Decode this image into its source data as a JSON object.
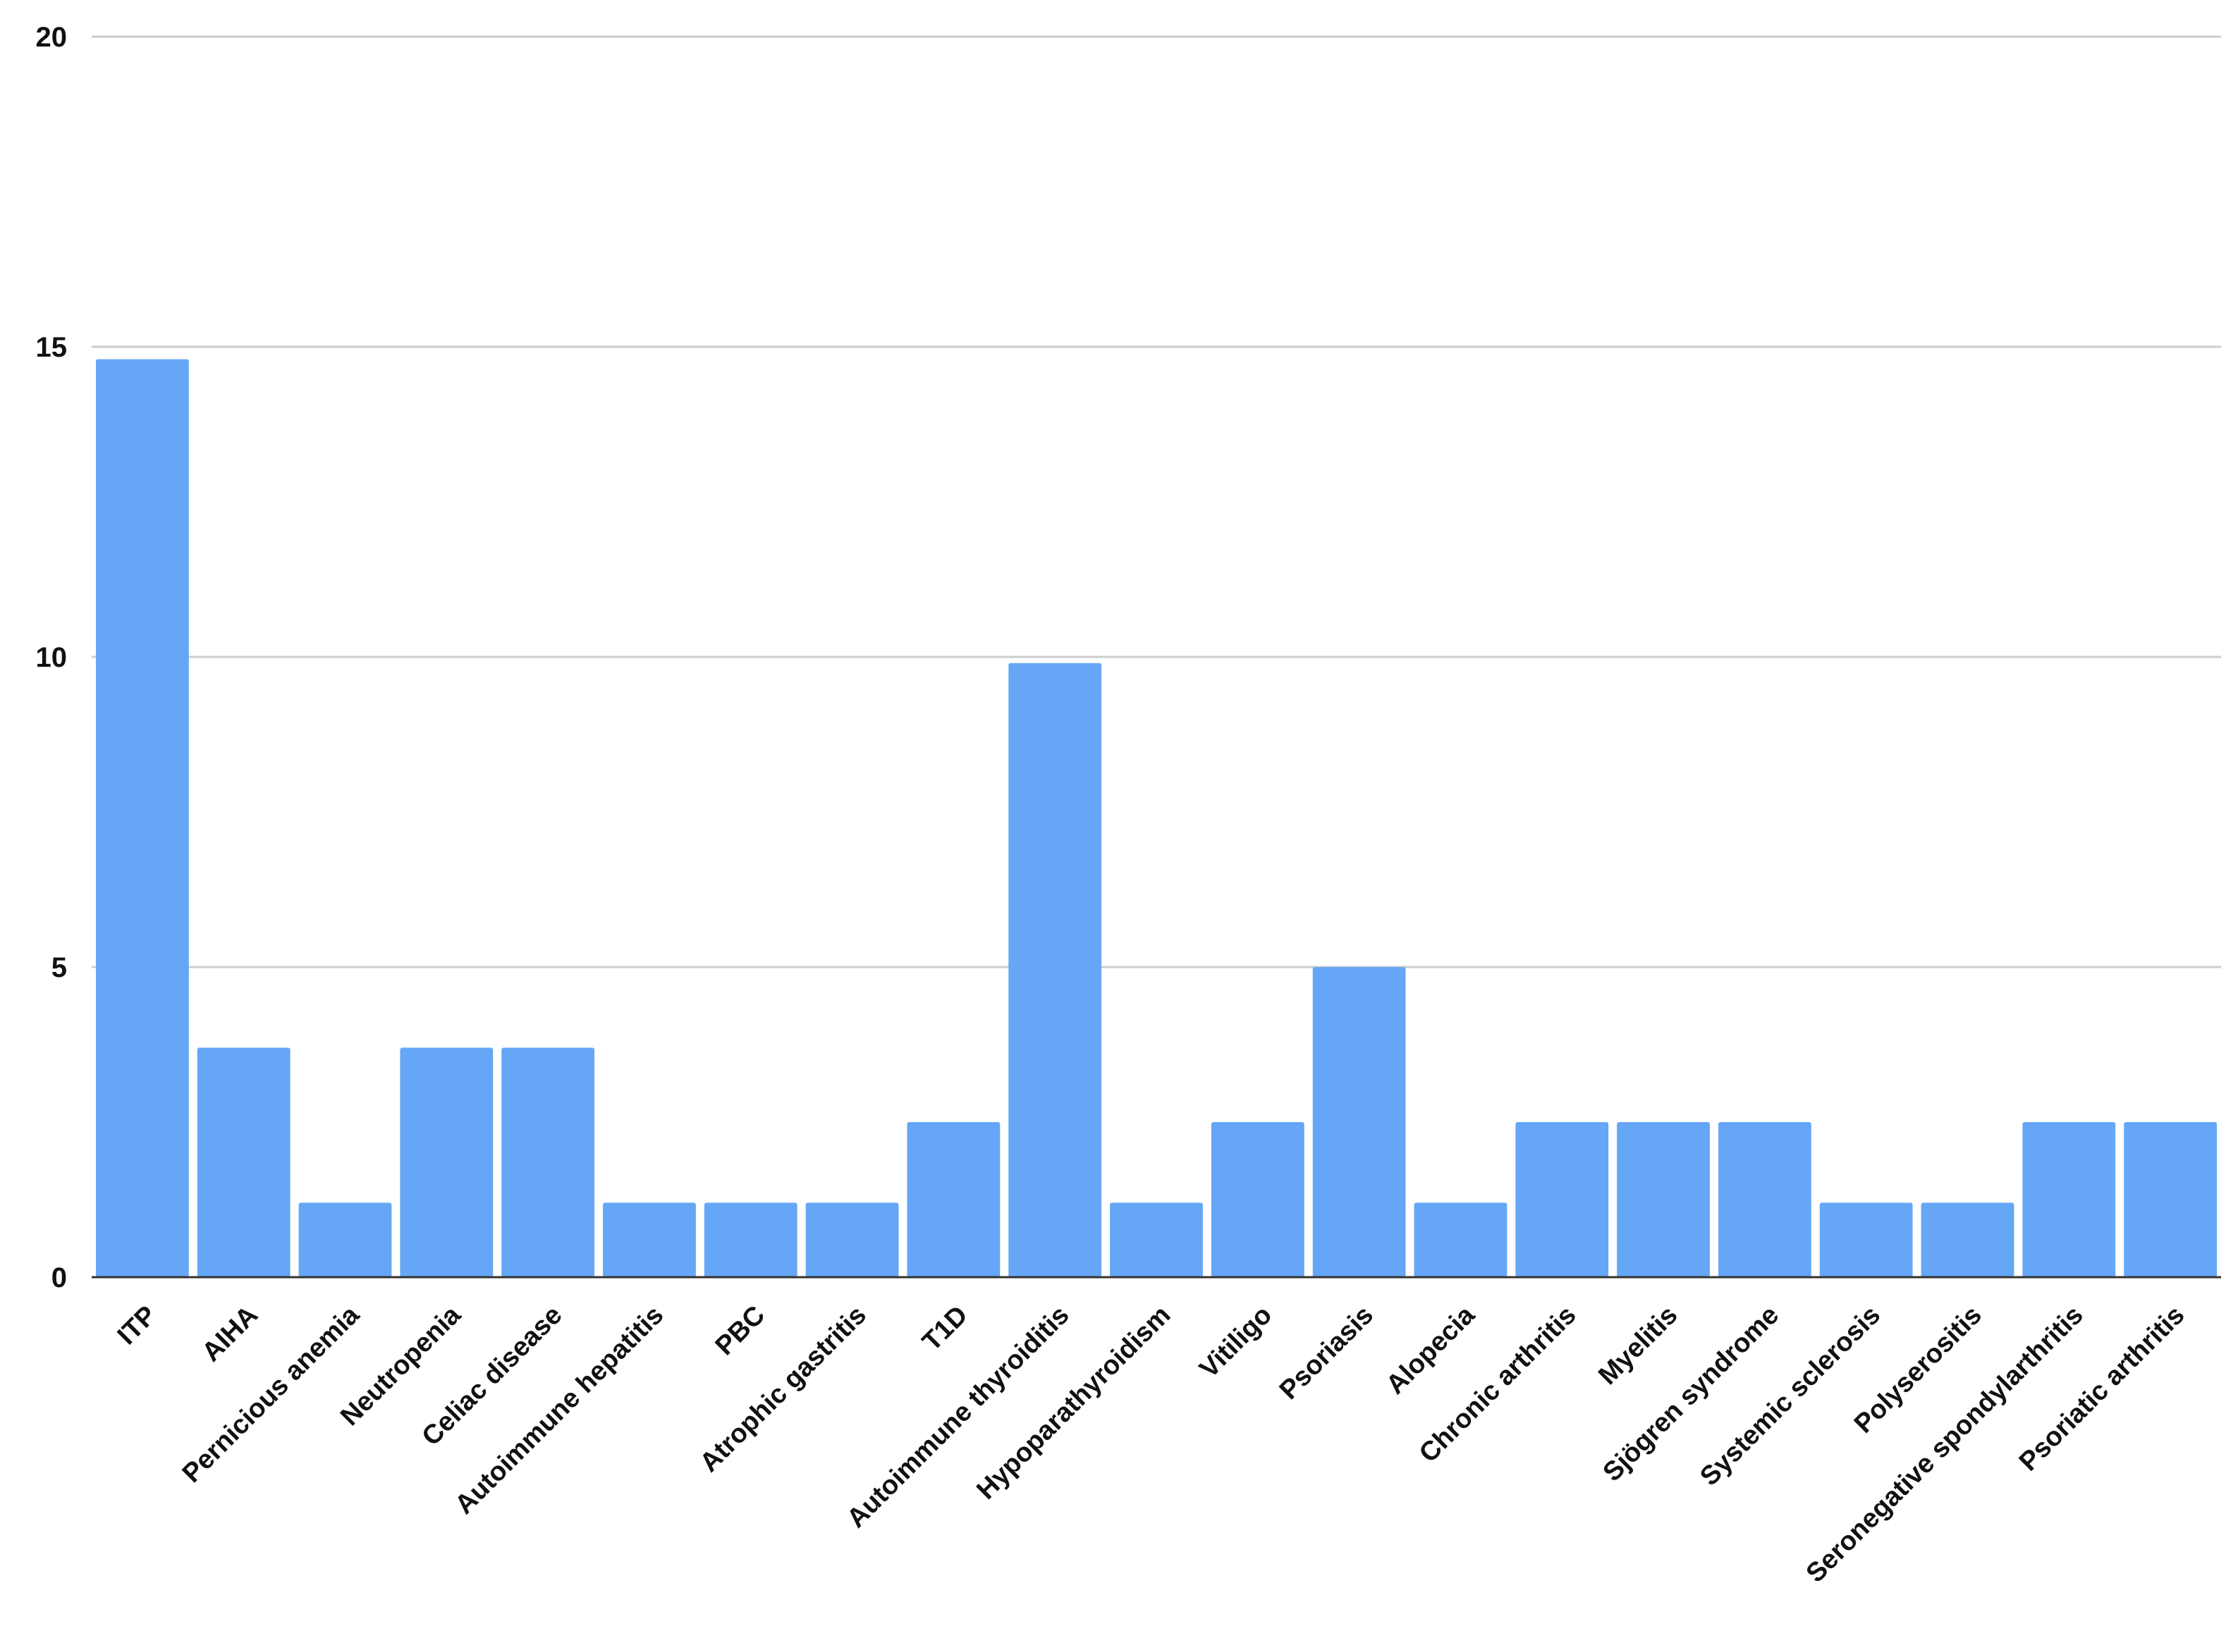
{
  "chart_data": {
    "type": "bar",
    "title": "",
    "xlabel": "",
    "ylabel": "",
    "ylim": [
      0,
      20
    ],
    "yticks": [
      0,
      5,
      10,
      15,
      20
    ],
    "ytick_labels": [
      "0",
      "5",
      "10",
      "15",
      "20"
    ],
    "grid": true,
    "legend": "none",
    "bar_color": "#66a6f6",
    "grid_color": "#cccccc",
    "axis_color": "#333333",
    "categories": [
      "ITP",
      "AIHA",
      "Pernicious anemia",
      "Neutropenia",
      "Celiac disease",
      "Autoimmune hepatitis",
      "PBC",
      "Atrophic gastritis",
      "T1D",
      "Autoimmune thyroiditis",
      "Hypoparathyroidism",
      "Vitiligo",
      "Psoriasis",
      "Alopecia",
      "Chronic arthritis",
      "Myelitis",
      "Sjögren syndrome",
      "Systemic sclerosis",
      "Polyserositis",
      "Seronegative spondylarthritis",
      "Psoriatic arthritis"
    ],
    "values": [
      14.8,
      3.7,
      1.2,
      3.7,
      3.7,
      1.2,
      1.2,
      1.2,
      2.5,
      9.9,
      1.2,
      2.5,
      5.0,
      1.2,
      2.5,
      2.5,
      2.5,
      1.2,
      1.2,
      2.5,
      2.5
    ]
  }
}
